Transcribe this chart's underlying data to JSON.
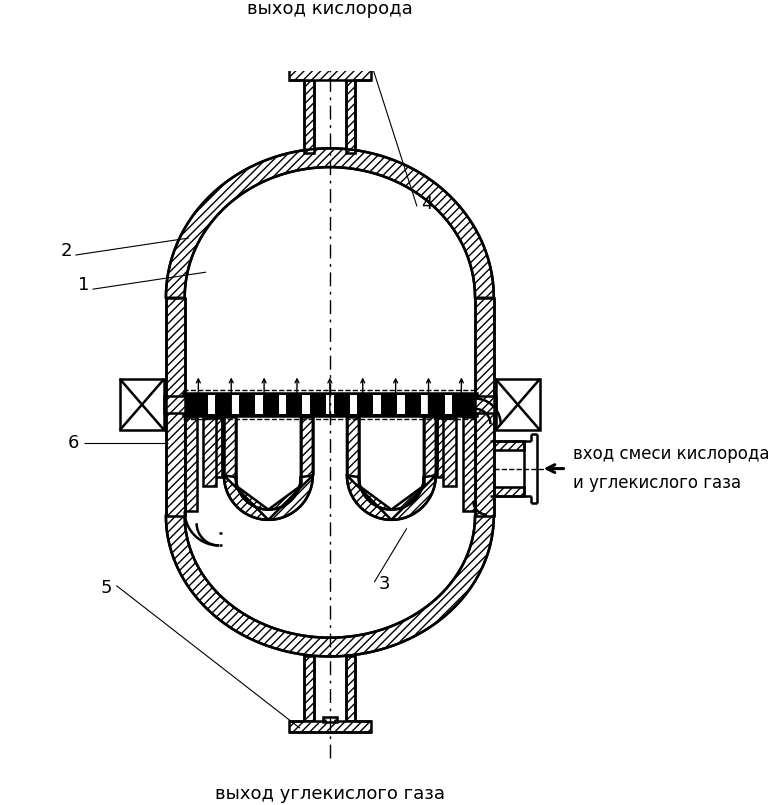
{
  "bg_color": "#ffffff",
  "line_color": "#000000",
  "text_top": "выход кислорода",
  "text_bottom": "выход углекислого газа",
  "text_right_line1": "вход смеси кислорода",
  "text_right_line2": "и углекислого газа",
  "label_1": "1",
  "label_2": "2",
  "label_3": "3",
  "label_4": "4",
  "label_5": "5",
  "label_6": "6",
  "fontsize_labels": 13,
  "fontsize_text": 13
}
